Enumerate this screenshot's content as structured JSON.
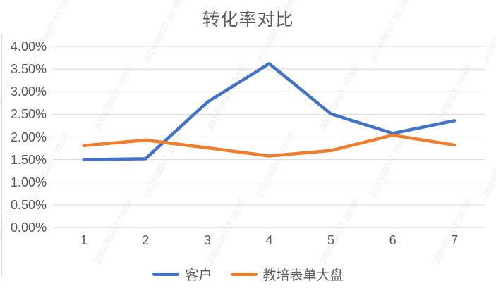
{
  "title": "转化率对比",
  "watermark": {
    "text": "2024/08/07 10:58",
    "color": "rgba(145,145,145,0.16)"
  },
  "axis": {
    "label_color": "#595959",
    "grid_color": "#d9d9d9",
    "baseline_color": "#c6c6c6",
    "title_color": "#595959"
  },
  "chart_data": {
    "type": "line",
    "title": "转化率对比",
    "unit": "%",
    "categories": [
      "1",
      "2",
      "3",
      "4",
      "5",
      "6",
      "7"
    ],
    "series": [
      {
        "name": "客户",
        "color": "#4472C4",
        "values": [
          1.5,
          1.52,
          2.77,
          3.62,
          2.51,
          2.08,
          2.36
        ]
      },
      {
        "name": "教培表单大盘",
        "color": "#ED7D31",
        "values": [
          1.81,
          1.93,
          1.76,
          1.58,
          1.7,
          2.04,
          1.82
        ]
      }
    ],
    "ylim": [
      0,
      4
    ],
    "ytick_step": 0.5,
    "ytick_labels": [
      "0.00%",
      "0.50%",
      "1.00%",
      "1.50%",
      "2.00%",
      "2.50%",
      "3.00%",
      "3.50%",
      "4.00%"
    ],
    "xlabel": "",
    "ylabel": "",
    "grid": true,
    "legend_position": "bottom"
  }
}
